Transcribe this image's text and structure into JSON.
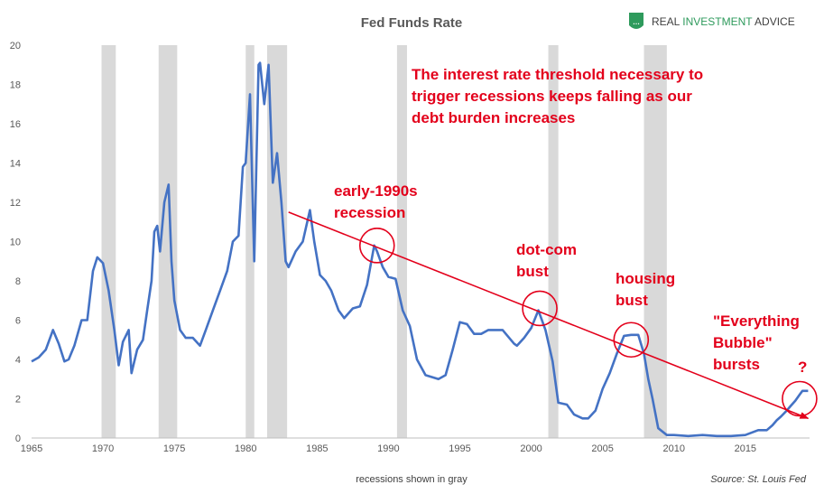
{
  "chart_data": {
    "type": "line",
    "title": "Fed Funds Rate",
    "xlabel": "",
    "ylabel": "",
    "xlim": [
      1965,
      2019.5
    ],
    "ylim": [
      0,
      20
    ],
    "x_ticks": [
      1965,
      1970,
      1975,
      1980,
      1985,
      1990,
      1995,
      2000,
      2005,
      2010,
      2015
    ],
    "y_ticks": [
      0,
      2,
      4,
      6,
      8,
      10,
      12,
      14,
      16,
      18,
      20
    ],
    "grid": false,
    "legend": "none",
    "note": "recessions shown in gray",
    "source": "Source: St. Louis Fed",
    "brand": {
      "prefix": "REAL ",
      "highlight": "INVESTMENT",
      "suffix": " ADVICE"
    },
    "colors": {
      "line": "#4472c4",
      "recession": "#d9d9d9",
      "annotation": "#e3001b",
      "brand_green": "#2e9a5c"
    },
    "recessions": [
      [
        1969.9,
        1970.9
      ],
      [
        1973.9,
        1975.2
      ],
      [
        1980.0,
        1980.6
      ],
      [
        1981.5,
        1982.9
      ],
      [
        1990.6,
        1991.3
      ],
      [
        2001.2,
        2001.9
      ],
      [
        2007.9,
        2009.5
      ]
    ],
    "series": [
      {
        "x": [
          1965.0,
          1965.5,
          1966.0,
          1966.5,
          1966.9,
          1967.3,
          1967.6,
          1968.0,
          1968.5,
          1968.9,
          1969.3,
          1969.6,
          1970.0,
          1970.4,
          1970.8,
          1971.1,
          1971.4,
          1971.8,
          1972.0,
          1972.4,
          1972.8,
          1973.1,
          1973.4,
          1973.6,
          1973.8,
          1974.0,
          1974.3,
          1974.6,
          1974.8,
          1975.0,
          1975.4,
          1975.8,
          1976.3,
          1976.8,
          1977.2,
          1977.7,
          1978.2,
          1978.7,
          1979.1,
          1979.5,
          1979.8,
          1980.0,
          1980.3,
          1980.6,
          1980.9,
          1981.0,
          1981.3,
          1981.6,
          1981.9,
          1982.2,
          1982.5,
          1982.8,
          1983.0,
          1983.5,
          1984.0,
          1984.5,
          1984.8,
          1985.2,
          1985.6,
          1986.0,
          1986.5,
          1986.9,
          1987.5,
          1988.0,
          1988.5,
          1989.0,
          1989.2,
          1989.6,
          1990.0,
          1990.5,
          1991.0,
          1991.5,
          1992.0,
          1992.6,
          1993.5,
          1994.0,
          1994.5,
          1995.0,
          1995.5,
          1996.0,
          1996.5,
          1997.0,
          1998.0,
          1998.8,
          1999.0,
          1999.5,
          2000.0,
          2000.5,
          2001.0,
          2001.5,
          2001.9,
          2002.5,
          2003.0,
          2003.6,
          2004.0,
          2004.5,
          2005.0,
          2005.5,
          2006.0,
          2006.5,
          2007.0,
          2007.5,
          2007.9,
          2008.2,
          2008.5,
          2008.9,
          2009.5,
          2010.0,
          2011.0,
          2012.0,
          2013.0,
          2014.0,
          2015.0,
          2015.9,
          2016.5,
          2016.9,
          2017.2,
          2017.5,
          2017.9,
          2018.2,
          2018.5,
          2018.8,
          2019.0,
          2019.4
        ],
        "values": [
          3.9,
          4.1,
          4.5,
          5.5,
          4.8,
          3.9,
          4.0,
          4.7,
          6.0,
          6.0,
          8.5,
          9.2,
          8.9,
          7.5,
          5.5,
          3.7,
          4.9,
          5.5,
          3.3,
          4.5,
          5.0,
          6.5,
          8.0,
          10.5,
          10.8,
          9.5,
          12.0,
          12.9,
          9.0,
          7.0,
          5.5,
          5.1,
          5.1,
          4.7,
          5.5,
          6.5,
          7.5,
          8.5,
          10.0,
          10.3,
          13.8,
          14.0,
          17.5,
          9.0,
          19.0,
          19.1,
          17.0,
          19.0,
          13.0,
          14.5,
          12.0,
          9.0,
          8.7,
          9.5,
          10.0,
          11.6,
          10.0,
          8.3,
          8.0,
          7.5,
          6.5,
          6.1,
          6.6,
          6.7,
          7.8,
          9.8,
          9.5,
          8.7,
          8.2,
          8.1,
          6.5,
          5.7,
          4.0,
          3.2,
          3.0,
          3.2,
          4.5,
          5.9,
          5.8,
          5.3,
          5.3,
          5.5,
          5.5,
          4.8,
          4.7,
          5.1,
          5.6,
          6.5,
          5.5,
          3.9,
          1.8,
          1.7,
          1.2,
          1.0,
          1.0,
          1.4,
          2.5,
          3.3,
          4.3,
          5.2,
          5.25,
          5.25,
          4.3,
          3.0,
          2.0,
          0.5,
          0.15,
          0.15,
          0.1,
          0.15,
          0.1,
          0.1,
          0.15,
          0.4,
          0.4,
          0.65,
          0.9,
          1.1,
          1.4,
          1.65,
          1.9,
          2.2,
          2.4,
          2.4
        ]
      }
    ],
    "trend_line": {
      "from": [
        1983.0,
        11.5
      ],
      "to": [
        2019.4,
        1.0
      ]
    },
    "annotations": [
      {
        "lines": [
          "The interest rate threshold necessary to",
          "trigger recessions keeps falling as our",
          "debt burden increases"
        ]
      },
      {
        "lines": [
          "early-1990s",
          "recession"
        ]
      },
      {
        "lines": [
          "dot-com",
          "bust"
        ]
      },
      {
        "lines": [
          "housing",
          "bust"
        ]
      },
      {
        "lines": [
          "\"Everything",
          "Bubble\"",
          "bursts"
        ]
      },
      {
        "lines": [
          "?"
        ]
      }
    ],
    "circles": [
      [
        1989.2,
        9.8
      ],
      [
        2000.6,
        6.6
      ],
      [
        2007.0,
        5.0
      ],
      [
        2018.8,
        2.0
      ]
    ]
  }
}
